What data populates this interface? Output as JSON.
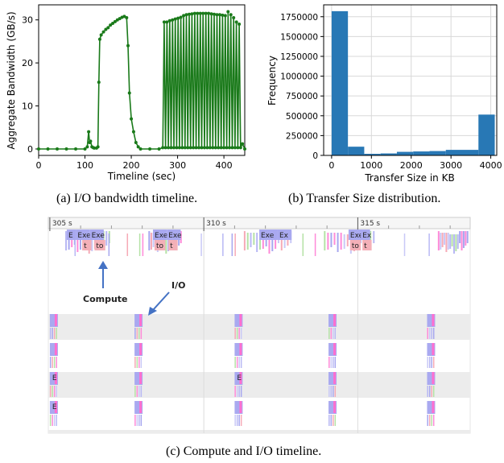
{
  "captions": {
    "a": "(a) I/O bandwidth timeline.",
    "b": "(b) Transfer Size distribution.",
    "c": "(c) Compute and I/O timeline."
  },
  "chart_data": [
    {
      "type": "line",
      "xlabel": "Timeline (sec)",
      "ylabel": "Aggregate Bandwidth (GB/s)",
      "xlim": [
        0,
        445
      ],
      "ylim": [
        -1.5,
        33.5
      ],
      "xticks": [
        0,
        100,
        200,
        300,
        400
      ],
      "yticks": [
        0,
        10,
        20,
        30
      ],
      "grid": false,
      "color": "#1a7a1a",
      "series": [
        {
          "x": [
            0,
            20,
            40,
            60,
            80,
            100,
            105,
            108,
            110,
            112,
            115,
            118,
            120,
            125,
            128,
            130,
            132,
            135,
            140,
            145,
            150,
            155,
            160,
            165,
            170,
            175,
            180,
            185,
            190,
            193,
            196,
            200,
            205,
            210,
            215,
            220,
            240,
            260,
            268,
            271,
            274,
            277,
            280,
            283,
            286,
            289,
            292,
            295,
            298,
            301,
            304,
            307,
            310,
            313,
            316,
            319,
            322,
            325,
            328,
            331,
            334,
            337,
            340,
            343,
            346,
            349,
            352,
            355,
            358,
            361,
            364,
            367,
            370,
            373,
            376,
            379,
            382,
            385,
            388,
            391,
            394,
            397,
            400,
            403,
            406,
            409,
            412,
            415,
            418,
            421,
            424,
            427,
            430,
            433,
            436,
            440,
            445
          ],
          "y": [
            0,
            0,
            0,
            0,
            0,
            0,
            0.5,
            4,
            1.5,
            1.8,
            0.5,
            0.3,
            0.2,
            0.2,
            0.5,
            15.5,
            25.5,
            26.5,
            27.2,
            27.8,
            28.2,
            28.8,
            29.2,
            29.6,
            30,
            30.3,
            30.6,
            30.8,
            30.5,
            24,
            13,
            7,
            4,
            1.5,
            0.5,
            0,
            0,
            0,
            0.3,
            29.5,
            0.3,
            29.5,
            0.3,
            29.8,
            0.3,
            30,
            0.3,
            30.2,
            0.3,
            30.4,
            0.3,
            30.6,
            0.3,
            31,
            0.3,
            31.2,
            0.3,
            31.3,
            0.3,
            31.4,
            0.3,
            31.5,
            0.3,
            31.5,
            0.3,
            31.5,
            0.3,
            31.5,
            0.3,
            31.5,
            0.3,
            31.5,
            0.3,
            31.4,
            0.3,
            31.3,
            0.3,
            31.2,
            0.3,
            31.2,
            0.3,
            31.1,
            0.3,
            31,
            0.3,
            31.9,
            0.3,
            31.2,
            0.3,
            30.5,
            0.3,
            29.5,
            0.3,
            29,
            0.3,
            1.2,
            0
          ]
        }
      ]
    },
    {
      "type": "bar",
      "xlabel": "Transfer Size in KB",
      "ylabel": "Frequency",
      "xlim": [
        -200,
        4150
      ],
      "ylim": [
        0,
        1900000
      ],
      "xticks": [
        0,
        1000,
        2000,
        3000,
        4000
      ],
      "yticks": [
        0,
        250000,
        500000,
        750000,
        1000000,
        1250000,
        1500000,
        1750000
      ],
      "xtick_labels": [
        "0",
        "1000",
        "2000",
        "3000",
        "4000"
      ],
      "ytick_labels": [
        "0",
        "250000",
        "500000",
        "750000",
        "1000000",
        "1250000",
        "1500000",
        "1750000"
      ],
      "grid": true,
      "color": "#2878b5",
      "bins": [
        {
          "x0": 0,
          "x1": 410,
          "value": 1820000
        },
        {
          "x0": 410,
          "x1": 820,
          "value": 110000
        },
        {
          "x0": 820,
          "x1": 1230,
          "value": 20000
        },
        {
          "x0": 1230,
          "x1": 1640,
          "value": 25000
        },
        {
          "x0": 1640,
          "x1": 2050,
          "value": 45000
        },
        {
          "x0": 2050,
          "x1": 2460,
          "value": 50000
        },
        {
          "x0": 2460,
          "x1": 2870,
          "value": 55000
        },
        {
          "x0": 2870,
          "x1": 3280,
          "value": 70000
        },
        {
          "x0": 3280,
          "x1": 3690,
          "value": 70000
        },
        {
          "x0": 3690,
          "x1": 4100,
          "value": 515000
        }
      ]
    },
    {
      "type": "timeline",
      "ruler_labels": [
        "305 s",
        "310 s",
        "315 s"
      ],
      "annotations": {
        "compute": "Compute",
        "io": "I/O"
      },
      "top_lane_blocks": [
        {
          "t": 305.55,
          "d": 0.3,
          "label": "E"
        },
        {
          "t": 305.85,
          "d": 0.45,
          "label": "Exe"
        },
        {
          "t": 306.3,
          "d": 0.45,
          "label": "Exe"
        },
        {
          "t": 306.05,
          "d": 0.3,
          "label": "t"
        },
        {
          "t": 306.45,
          "d": 0.35,
          "label": "to"
        },
        {
          "t": 308.35,
          "d": 0.45,
          "label": "Exe"
        },
        {
          "t": 308.8,
          "d": 0.45,
          "label": "Exe"
        },
        {
          "t": 308.4,
          "d": 0.35,
          "label": "to"
        },
        {
          "t": 308.85,
          "d": 0.3,
          "label": "t"
        },
        {
          "t": 311.8,
          "d": 0.6,
          "label": "Exe"
        },
        {
          "t": 312.4,
          "d": 0.45,
          "label": "Ex"
        },
        {
          "t": 314.7,
          "d": 0.45,
          "label": "Exe"
        },
        {
          "t": 315.1,
          "d": 0.3,
          "label": "Ex"
        },
        {
          "t": 314.75,
          "d": 0.35,
          "label": "to"
        },
        {
          "t": 315.15,
          "d": 0.3,
          "label": "t"
        }
      ],
      "row_labels": [
        "E",
        "E",
        "E"
      ]
    }
  ]
}
